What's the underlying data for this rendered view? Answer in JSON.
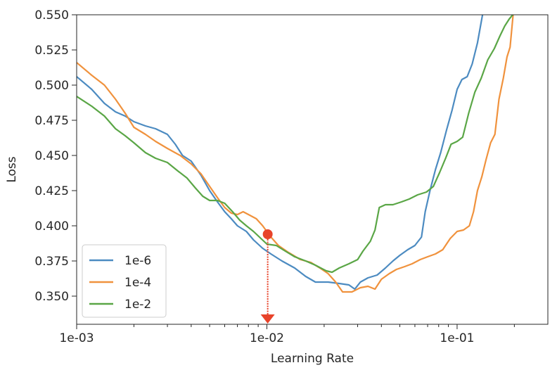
{
  "chart_data": {
    "type": "line",
    "xlabel": "Learning Rate",
    "ylabel": "Loss",
    "xscale": "log",
    "xlim": [
      0.001,
      0.3
    ],
    "ylim": [
      0.33,
      0.55
    ],
    "x_ticks": [
      {
        "value": 0.001,
        "label": "1e-03"
      },
      {
        "value": 0.01,
        "label": "1e-02"
      },
      {
        "value": 0.1,
        "label": "1e-01"
      }
    ],
    "y_ticks": [
      {
        "value": 0.35,
        "label": "0.350"
      },
      {
        "value": 0.375,
        "label": "0.375"
      },
      {
        "value": 0.4,
        "label": "0.400"
      },
      {
        "value": 0.425,
        "label": "0.425"
      },
      {
        "value": 0.45,
        "label": "0.450"
      },
      {
        "value": 0.475,
        "label": "0.475"
      },
      {
        "value": 0.5,
        "label": "0.500"
      },
      {
        "value": 0.525,
        "label": "0.525"
      },
      {
        "value": 0.55,
        "label": "0.550"
      }
    ],
    "grid": false,
    "legend_position": "bottom-left",
    "series": [
      {
        "name": "1e-6",
        "color": "#4c8bc1",
        "points": [
          [
            0.001,
            0.506
          ],
          [
            0.0012,
            0.497
          ],
          [
            0.0014,
            0.487
          ],
          [
            0.0016,
            0.481
          ],
          [
            0.0018,
            0.478
          ],
          [
            0.002,
            0.474
          ],
          [
            0.0023,
            0.471
          ],
          [
            0.0026,
            0.469
          ],
          [
            0.003,
            0.465
          ],
          [
            0.0033,
            0.458
          ],
          [
            0.0036,
            0.45
          ],
          [
            0.004,
            0.446
          ],
          [
            0.0045,
            0.436
          ],
          [
            0.005,
            0.425
          ],
          [
            0.0055,
            0.417
          ],
          [
            0.006,
            0.41
          ],
          [
            0.0065,
            0.405
          ],
          [
            0.007,
            0.4
          ],
          [
            0.0078,
            0.396
          ],
          [
            0.0085,
            0.39
          ],
          [
            0.0095,
            0.384
          ],
          [
            0.0105,
            0.38
          ],
          [
            0.012,
            0.375
          ],
          [
            0.014,
            0.37
          ],
          [
            0.016,
            0.364
          ],
          [
            0.018,
            0.36
          ],
          [
            0.021,
            0.36
          ],
          [
            0.024,
            0.359
          ],
          [
            0.027,
            0.358
          ],
          [
            0.029,
            0.355
          ],
          [
            0.031,
            0.36
          ],
          [
            0.034,
            0.363
          ],
          [
            0.038,
            0.365
          ],
          [
            0.042,
            0.37
          ],
          [
            0.046,
            0.375
          ],
          [
            0.05,
            0.379
          ],
          [
            0.055,
            0.383
          ],
          [
            0.06,
            0.386
          ],
          [
            0.065,
            0.392
          ],
          [
            0.068,
            0.41
          ],
          [
            0.072,
            0.425
          ],
          [
            0.077,
            0.44
          ],
          [
            0.082,
            0.452
          ],
          [
            0.088,
            0.468
          ],
          [
            0.094,
            0.482
          ],
          [
            0.1,
            0.497
          ],
          [
            0.106,
            0.504
          ],
          [
            0.113,
            0.506
          ],
          [
            0.12,
            0.515
          ],
          [
            0.128,
            0.53
          ],
          [
            0.136,
            0.55
          ]
        ]
      },
      {
        "name": "1e-4",
        "color": "#f0923d",
        "points": [
          [
            0.001,
            0.516
          ],
          [
            0.0012,
            0.507
          ],
          [
            0.0014,
            0.5
          ],
          [
            0.0016,
            0.49
          ],
          [
            0.0018,
            0.48
          ],
          [
            0.002,
            0.47
          ],
          [
            0.0023,
            0.465
          ],
          [
            0.0026,
            0.46
          ],
          [
            0.003,
            0.455
          ],
          [
            0.0035,
            0.45
          ],
          [
            0.004,
            0.444
          ],
          [
            0.0045,
            0.437
          ],
          [
            0.005,
            0.428
          ],
          [
            0.0055,
            0.42
          ],
          [
            0.006,
            0.413
          ],
          [
            0.0065,
            0.409
          ],
          [
            0.007,
            0.408
          ],
          [
            0.0075,
            0.41
          ],
          [
            0.008,
            0.408
          ],
          [
            0.0088,
            0.405
          ],
          [
            0.0095,
            0.4
          ],
          [
            0.0105,
            0.392
          ],
          [
            0.0115,
            0.386
          ],
          [
            0.013,
            0.381
          ],
          [
            0.015,
            0.376
          ],
          [
            0.017,
            0.374
          ],
          [
            0.019,
            0.37
          ],
          [
            0.021,
            0.366
          ],
          [
            0.023,
            0.36
          ],
          [
            0.025,
            0.353
          ],
          [
            0.028,
            0.353
          ],
          [
            0.031,
            0.356
          ],
          [
            0.034,
            0.357
          ],
          [
            0.037,
            0.355
          ],
          [
            0.04,
            0.362
          ],
          [
            0.044,
            0.366
          ],
          [
            0.048,
            0.369
          ],
          [
            0.053,
            0.371
          ],
          [
            0.058,
            0.373
          ],
          [
            0.064,
            0.376
          ],
          [
            0.07,
            0.378
          ],
          [
            0.077,
            0.38
          ],
          [
            0.084,
            0.383
          ],
          [
            0.092,
            0.391
          ],
          [
            0.1,
            0.396
          ],
          [
            0.108,
            0.397
          ],
          [
            0.116,
            0.4
          ],
          [
            0.122,
            0.41
          ],
          [
            0.128,
            0.425
          ],
          [
            0.135,
            0.435
          ],
          [
            0.142,
            0.447
          ],
          [
            0.15,
            0.459
          ],
          [
            0.158,
            0.465
          ],
          [
            0.166,
            0.49
          ],
          [
            0.175,
            0.505
          ],
          [
            0.183,
            0.52
          ],
          [
            0.19,
            0.527
          ],
          [
            0.197,
            0.55
          ]
        ]
      },
      {
        "name": "1e-2",
        "color": "#5aa646",
        "points": [
          [
            0.001,
            0.492
          ],
          [
            0.0012,
            0.485
          ],
          [
            0.0014,
            0.478
          ],
          [
            0.0016,
            0.469
          ],
          [
            0.0018,
            0.464
          ],
          [
            0.002,
            0.459
          ],
          [
            0.0023,
            0.452
          ],
          [
            0.0026,
            0.448
          ],
          [
            0.003,
            0.445
          ],
          [
            0.0034,
            0.439
          ],
          [
            0.0038,
            0.434
          ],
          [
            0.0042,
            0.427
          ],
          [
            0.0046,
            0.421
          ],
          [
            0.005,
            0.418
          ],
          [
            0.0055,
            0.418
          ],
          [
            0.006,
            0.416
          ],
          [
            0.0066,
            0.41
          ],
          [
            0.0072,
            0.404
          ],
          [
            0.0078,
            0.4
          ],
          [
            0.0085,
            0.396
          ],
          [
            0.0093,
            0.391
          ],
          [
            0.01,
            0.387
          ],
          [
            0.0112,
            0.386
          ],
          [
            0.0125,
            0.382
          ],
          [
            0.014,
            0.378
          ],
          [
            0.016,
            0.375
          ],
          [
            0.018,
            0.372
          ],
          [
            0.0205,
            0.368
          ],
          [
            0.022,
            0.367
          ],
          [
            0.024,
            0.37
          ],
          [
            0.027,
            0.373
          ],
          [
            0.03,
            0.376
          ],
          [
            0.032,
            0.382
          ],
          [
            0.035,
            0.389
          ],
          [
            0.037,
            0.397
          ],
          [
            0.039,
            0.413
          ],
          [
            0.042,
            0.415
          ],
          [
            0.046,
            0.415
          ],
          [
            0.051,
            0.417
          ],
          [
            0.056,
            0.419
          ],
          [
            0.062,
            0.422
          ],
          [
            0.069,
            0.424
          ],
          [
            0.075,
            0.428
          ],
          [
            0.081,
            0.438
          ],
          [
            0.087,
            0.448
          ],
          [
            0.093,
            0.458
          ],
          [
            0.1,
            0.46
          ],
          [
            0.107,
            0.463
          ],
          [
            0.115,
            0.48
          ],
          [
            0.124,
            0.495
          ],
          [
            0.134,
            0.505
          ],
          [
            0.145,
            0.518
          ],
          [
            0.157,
            0.526
          ],
          [
            0.168,
            0.535
          ],
          [
            0.178,
            0.542
          ],
          [
            0.188,
            0.547
          ],
          [
            0.196,
            0.55
          ]
        ]
      }
    ],
    "annotation": {
      "type": "marker-with-arrow",
      "color": "#e8432a",
      "x": 0.0101,
      "y": 0.394,
      "arrow_to_y": 0.33
    }
  }
}
